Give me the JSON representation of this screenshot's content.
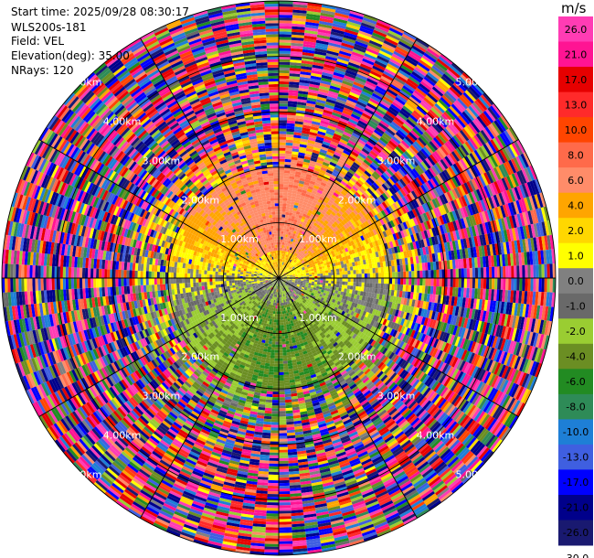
{
  "header": {
    "start_time": "Start time: 2025/09/28 08:30:17",
    "instrument": "WLS200s-181",
    "field": "Field: VEL",
    "elevation": "Elevation(deg): 35.00",
    "nrays": "NRays: 120"
  },
  "colorbar": {
    "unit": "m/s",
    "ticks": [
      "26.0",
      "21.0",
      "17.0",
      "13.0",
      "10.0",
      "8.0",
      "6.0",
      "4.0",
      "2.0",
      "1.0",
      "0.0",
      "-1.0",
      "-2.0",
      "-4.0",
      "-6.0",
      "-8.0",
      "-10.0",
      "-13.0",
      "-17.0",
      "-21.0",
      "-26.0",
      "-30.0"
    ],
    "colors": [
      "#ff3cb4",
      "#ff1493",
      "#e60000",
      "#ff2a2a",
      "#ff4500",
      "#ff6a4a",
      "#ff8c69",
      "#ffa500",
      "#ffd700",
      "#ffff00",
      "#808080",
      "#696969",
      "#9acd32",
      "#6b8e23",
      "#228b22",
      "#2e8b57",
      "#1e7fd6",
      "#3f5fe0",
      "#0000ff",
      "#00008b",
      "#191970"
    ]
  },
  "chart_data": {
    "type": "heatmap",
    "subtype": "polar-ppi",
    "field": "VEL",
    "units": "m/s",
    "nrays": 120,
    "range_rings_km": [
      1,
      2,
      3,
      4,
      5
    ],
    "ring_label_text": [
      "1.00km",
      "2.00km",
      "3.00km",
      "4.00km",
      "5.00km"
    ],
    "ring_label_azimuths_deg": [
      45,
      135,
      225,
      315
    ],
    "spokes_deg": [
      0,
      30,
      60,
      90,
      120,
      150,
      180,
      210,
      240,
      270,
      300,
      330
    ],
    "max_range_km": 5.0,
    "color_scale": {
      "bounds": [
        -30,
        -26,
        -21,
        -17,
        -13,
        -10,
        -8,
        -6,
        -4,
        -2,
        -1,
        0,
        1,
        2,
        4,
        6,
        8,
        10,
        13,
        17,
        21,
        26
      ],
      "colors": [
        "#191970",
        "#00008b",
        "#0000ff",
        "#3f5fe0",
        "#1e7fd6",
        "#2e8b57",
        "#228b22",
        "#6b8e23",
        "#9acd32",
        "#696969",
        "#808080",
        "#ffff00",
        "#ffd700",
        "#ffa500",
        "#ff8c69",
        "#ff6a4a",
        "#ff4500",
        "#ff2a2a",
        "#e60000",
        "#ff1493",
        "#ff3cb4"
      ]
    },
    "near_field_pattern": "north half warm (+1 to +8 m/s), south half cool (-1 to -6 m/s), beyond ~2 km noisy across full scale"
  }
}
